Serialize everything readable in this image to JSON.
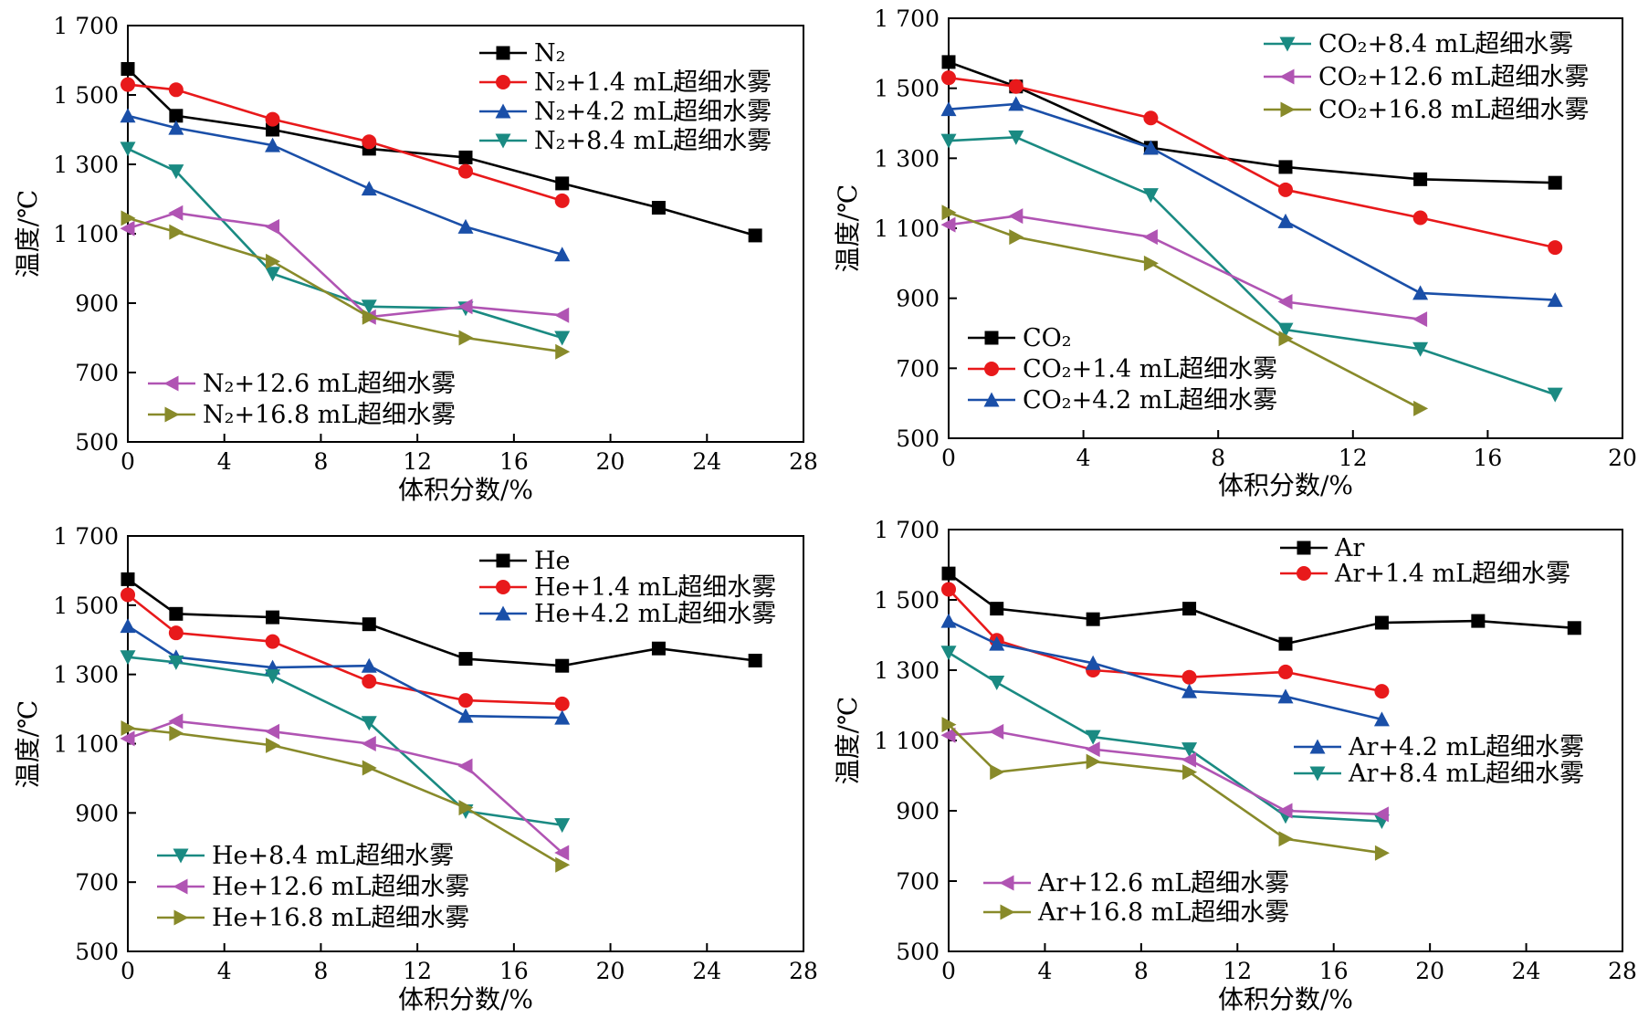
{
  "colors": {
    "black": "#000000",
    "red": "#e8191b",
    "blue": "#1a4fa8",
    "teal": "#1a8a82",
    "purple": "#b054b3",
    "olive": "#888a2a"
  },
  "chart_data": [
    {
      "type": "line",
      "xlabel": "体积分数/%",
      "ylabel": "温度/℃",
      "xlim": [
        0,
        28
      ],
      "ylim": [
        500,
        1700
      ],
      "xticks": [
        "0",
        "4",
        "8",
        "12",
        "16",
        "20",
        "24",
        "28"
      ],
      "yticks": [
        "500",
        "700",
        "900",
        "1 100",
        "1 300",
        "1 500",
        "1 700"
      ],
      "legend_groups": [
        "top-right",
        "bottom-left"
      ],
      "series": [
        {
          "name": "N₂",
          "marker": "square",
          "color": "black",
          "legend_group": 0,
          "x": [
            0,
            2,
            6,
            10,
            14,
            18,
            22,
            26
          ],
          "y": [
            1575,
            1440,
            1400,
            1345,
            1320,
            1245,
            1175,
            1095
          ]
        },
        {
          "name": "N₂+1.4 mL超细水雾",
          "marker": "circle",
          "color": "red",
          "legend_group": 0,
          "x": [
            0,
            2,
            6,
            10,
            14,
            18
          ],
          "y": [
            1530,
            1515,
            1430,
            1365,
            1280,
            1195
          ]
        },
        {
          "name": "N₂+4.2 mL超细水雾",
          "marker": "triangle-up",
          "color": "blue",
          "legend_group": 0,
          "x": [
            0,
            2,
            6,
            10,
            14,
            18
          ],
          "y": [
            1440,
            1405,
            1355,
            1230,
            1120,
            1040
          ]
        },
        {
          "name": "N₂+8.4 mL超细水雾",
          "marker": "triangle-down",
          "color": "teal",
          "legend_group": 0,
          "x": [
            0,
            2,
            6,
            10,
            14,
            18
          ],
          "y": [
            1345,
            1280,
            985,
            890,
            885,
            800
          ]
        },
        {
          "name": "N₂+12.6 mL超细水雾",
          "marker": "triangle-left",
          "color": "purple",
          "legend_group": 1,
          "x": [
            0,
            2,
            6,
            10,
            14,
            18
          ],
          "y": [
            1115,
            1160,
            1120,
            860,
            890,
            865
          ]
        },
        {
          "name": "N₂+16.8 mL超细水雾",
          "marker": "triangle-right",
          "color": "olive",
          "legend_group": 1,
          "x": [
            0,
            2,
            6,
            10,
            14,
            18
          ],
          "y": [
            1145,
            1105,
            1020,
            860,
            800,
            760
          ]
        }
      ]
    },
    {
      "type": "line",
      "xlabel": "体积分数/%",
      "ylabel": "温度/℃",
      "xlim": [
        0,
        20
      ],
      "ylim": [
        500,
        1700
      ],
      "xticks": [
        "0",
        "4",
        "8",
        "12",
        "16",
        "20"
      ],
      "yticks": [
        "500",
        "700",
        "900",
        "1 100",
        "1 300",
        "1 500",
        "1 700"
      ],
      "legend_groups": [
        "top-right",
        "bottom-left"
      ],
      "series": [
        {
          "name": "CO₂",
          "marker": "square",
          "color": "black",
          "legend_group": 1,
          "x": [
            0,
            2,
            6,
            10,
            14,
            18
          ],
          "y": [
            1575,
            1505,
            1330,
            1275,
            1240,
            1230
          ]
        },
        {
          "name": "CO₂+1.4 mL超细水雾",
          "marker": "circle",
          "color": "red",
          "legend_group": 1,
          "x": [
            0,
            2,
            6,
            10,
            14,
            18
          ],
          "y": [
            1530,
            1505,
            1415,
            1210,
            1130,
            1045
          ]
        },
        {
          "name": "CO₂+4.2 mL超细水雾",
          "marker": "triangle-up",
          "color": "blue",
          "legend_group": 1,
          "x": [
            0,
            2,
            6,
            10,
            14,
            18
          ],
          "y": [
            1440,
            1455,
            1330,
            1120,
            915,
            895
          ]
        },
        {
          "name": "CO₂+8.4 mL超细水雾",
          "marker": "triangle-down",
          "color": "teal",
          "legend_group": 0,
          "x": [
            0,
            2,
            6,
            10,
            14,
            18
          ],
          "y": [
            1350,
            1360,
            1195,
            810,
            755,
            625
          ]
        },
        {
          "name": "CO₂+12.6 mL超细水雾",
          "marker": "triangle-left",
          "color": "purple",
          "legend_group": 0,
          "x": [
            0,
            2,
            6,
            10,
            14
          ],
          "y": [
            1110,
            1135,
            1075,
            890,
            840
          ]
        },
        {
          "name": "CO₂+16.8 mL超细水雾",
          "marker": "triangle-right",
          "color": "olive",
          "legend_group": 0,
          "x": [
            0,
            2,
            6,
            10,
            14
          ],
          "y": [
            1145,
            1075,
            1000,
            785,
            585
          ]
        }
      ]
    },
    {
      "type": "line",
      "xlabel": "体积分数/%",
      "ylabel": "温度/℃",
      "xlim": [
        0,
        28
      ],
      "ylim": [
        500,
        1700
      ],
      "xticks": [
        "0",
        "4",
        "8",
        "12",
        "16",
        "20",
        "24",
        "28"
      ],
      "yticks": [
        "500",
        "700",
        "900",
        "1 100",
        "1 300",
        "1 500",
        "1 700"
      ],
      "legend_groups": [
        "top-right",
        "bottom-left"
      ],
      "series": [
        {
          "name": "He",
          "marker": "square",
          "color": "black",
          "legend_group": 0,
          "x": [
            0,
            2,
            6,
            10,
            14,
            18,
            22,
            26
          ],
          "y": [
            1575,
            1475,
            1465,
            1445,
            1345,
            1325,
            1375,
            1340
          ]
        },
        {
          "name": "He+1.4 mL超细水雾",
          "marker": "circle",
          "color": "red",
          "legend_group": 0,
          "x": [
            0,
            2,
            6,
            10,
            14,
            18
          ],
          "y": [
            1530,
            1420,
            1395,
            1280,
            1225,
            1215
          ]
        },
        {
          "name": "He+4.2 mL超细水雾",
          "marker": "triangle-up",
          "color": "blue",
          "legend_group": 0,
          "x": [
            0,
            2,
            6,
            10,
            14,
            18
          ],
          "y": [
            1440,
            1350,
            1320,
            1325,
            1180,
            1175
          ]
        },
        {
          "name": "He+8.4 mL超细水雾",
          "marker": "triangle-down",
          "color": "teal",
          "legend_group": 1,
          "x": [
            0,
            2,
            6,
            10,
            14,
            18
          ],
          "y": [
            1350,
            1335,
            1295,
            1160,
            905,
            865
          ]
        },
        {
          "name": "He+12.6 mL超细水雾",
          "marker": "triangle-left",
          "color": "purple",
          "legend_group": 1,
          "x": [
            0,
            2,
            6,
            10,
            14,
            18
          ],
          "y": [
            1115,
            1165,
            1135,
            1100,
            1035,
            785
          ]
        },
        {
          "name": "He+16.8 mL超细水雾",
          "marker": "triangle-right",
          "color": "olive",
          "legend_group": 1,
          "x": [
            0,
            2,
            6,
            10,
            14,
            18
          ],
          "y": [
            1145,
            1130,
            1095,
            1030,
            915,
            750
          ]
        }
      ]
    },
    {
      "type": "line",
      "xlabel": "体积分数/%",
      "ylabel": "温度/℃",
      "xlim": [
        0,
        28
      ],
      "ylim": [
        500,
        1700
      ],
      "xticks": [
        "0",
        "4",
        "8",
        "12",
        "16",
        "20",
        "24",
        "28"
      ],
      "yticks": [
        "500",
        "700",
        "900",
        "1 100",
        "1 300",
        "1 500",
        "1 700"
      ],
      "legend_groups": [
        "top-right",
        "right",
        "bottom-left"
      ],
      "series": [
        {
          "name": "Ar",
          "marker": "square",
          "color": "black",
          "legend_group": 0,
          "x": [
            0,
            2,
            6,
            10,
            14,
            18,
            22,
            26
          ],
          "y": [
            1575,
            1475,
            1445,
            1475,
            1375,
            1435,
            1440,
            1420
          ]
        },
        {
          "name": "Ar+1.4 mL超细水雾",
          "marker": "circle",
          "color": "red",
          "legend_group": 0,
          "x": [
            0,
            2,
            6,
            10,
            14,
            18
          ],
          "y": [
            1530,
            1385,
            1300,
            1280,
            1295,
            1240
          ]
        },
        {
          "name": "Ar+4.2 mL超细水雾",
          "marker": "triangle-up",
          "color": "blue",
          "legend_group": 1,
          "x": [
            0,
            2,
            6,
            10,
            14,
            18
          ],
          "y": [
            1440,
            1375,
            1320,
            1240,
            1225,
            1160
          ]
        },
        {
          "name": "Ar+8.4 mL超细水雾",
          "marker": "triangle-down",
          "color": "teal",
          "legend_group": 1,
          "x": [
            0,
            2,
            6,
            10,
            14,
            18
          ],
          "y": [
            1350,
            1265,
            1110,
            1075,
            885,
            870
          ]
        },
        {
          "name": "Ar+12.6 mL超细水雾",
          "marker": "triangle-left",
          "color": "purple",
          "legend_group": 2,
          "x": [
            0,
            2,
            6,
            10,
            14,
            18
          ],
          "y": [
            1115,
            1125,
            1075,
            1045,
            900,
            890
          ]
        },
        {
          "name": "Ar+16.8 mL超细水雾",
          "marker": "triangle-right",
          "color": "olive",
          "legend_group": 2,
          "x": [
            0,
            2,
            6,
            10,
            14,
            18
          ],
          "y": [
            1145,
            1010,
            1040,
            1010,
            820,
            780
          ]
        }
      ]
    }
  ]
}
